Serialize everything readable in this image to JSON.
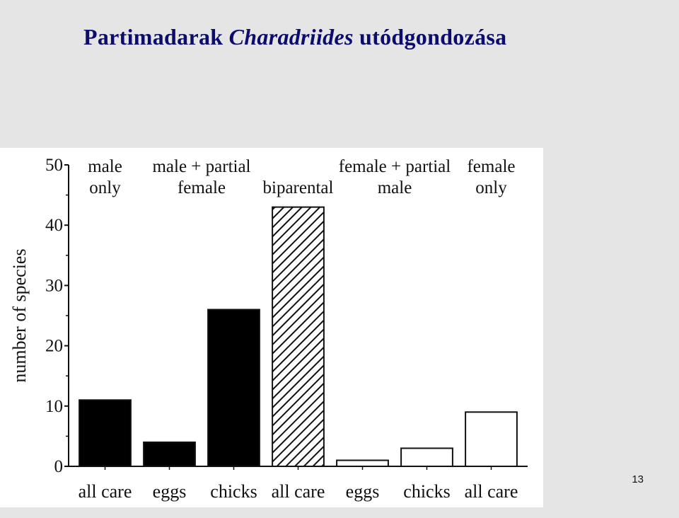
{
  "slide": {
    "title_pre": "Partimadarak ",
    "title_italic": "Charadriides",
    "title_post": " utódgondozása",
    "page_number": "13"
  },
  "chart_data": {
    "type": "bar",
    "ylabel": "number of species",
    "xlabel": "",
    "ylim": [
      0,
      50
    ],
    "yticks": [
      0,
      10,
      20,
      30,
      40,
      50
    ],
    "grid": false,
    "categories": [
      "all care",
      "eggs",
      "chicks",
      "all care",
      "eggs",
      "chicks",
      "all care"
    ],
    "values": [
      11,
      4,
      26,
      43,
      1,
      3,
      9
    ],
    "fills": [
      "black",
      "black",
      "black",
      "hatched",
      "white",
      "white",
      "white"
    ],
    "groups": [
      {
        "lines": [
          "male",
          "only"
        ]
      },
      {
        "lines": [
          "male + partial",
          "female"
        ]
      },
      {
        "lines": [
          "biparental"
        ]
      },
      {
        "lines": [
          "female + partial",
          "male"
        ]
      },
      {
        "lines": [
          "female",
          "only"
        ]
      }
    ]
  }
}
